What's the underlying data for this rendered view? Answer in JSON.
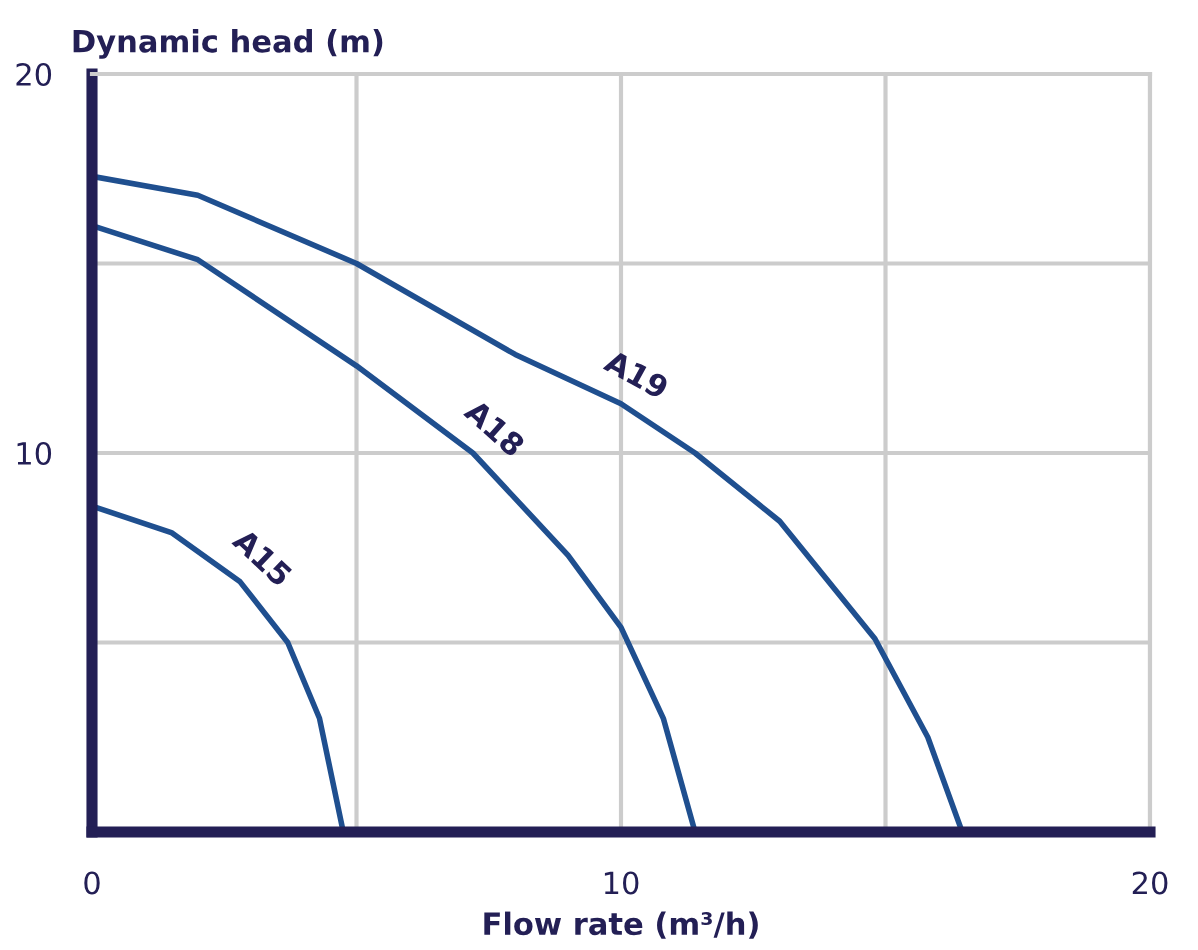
{
  "chart_data": {
    "type": "line",
    "xlabel": "Flow rate (m³/h)",
    "ylabel": "Dynamic head (m)",
    "xlim": [
      0,
      20
    ],
    "ylim": [
      0,
      20
    ],
    "xticks": [
      0,
      {
        "value": 5,
        "label": null
      },
      10,
      {
        "value": 15,
        "label": null
      },
      20
    ],
    "yticks": [
      {
        "value": 0,
        "label": null
      },
      {
        "value": 5,
        "label": null
      },
      10,
      {
        "value": 15,
        "label": null
      },
      20
    ],
    "grid": true,
    "legend": false,
    "marker": "none",
    "line_style": "solid",
    "series": [
      {
        "name": "A15",
        "color": "#1f4f8f",
        "x": [
          0,
          1.5,
          2.8,
          3.7,
          4.3,
          4.75
        ],
        "values": [
          8.6,
          7.9,
          6.6,
          5.0,
          3.0,
          0
        ]
      },
      {
        "name": "A18",
        "color": "#1f4f8f",
        "x": [
          0,
          2,
          5,
          7.2,
          9,
          10,
          10.8,
          11.4
        ],
        "values": [
          16.0,
          15.1,
          12.3,
          10.0,
          7.3,
          5.4,
          3.0,
          0
        ]
      },
      {
        "name": "A19",
        "color": "#1f4f8f",
        "x": [
          0,
          2,
          5,
          8,
          10,
          11.4,
          13,
          14.8,
          15.8,
          16.45
        ],
        "values": [
          17.3,
          16.8,
          15.0,
          12.6,
          11.3,
          10.0,
          8.2,
          5.1,
          2.5,
          0
        ]
      }
    ]
  }
}
